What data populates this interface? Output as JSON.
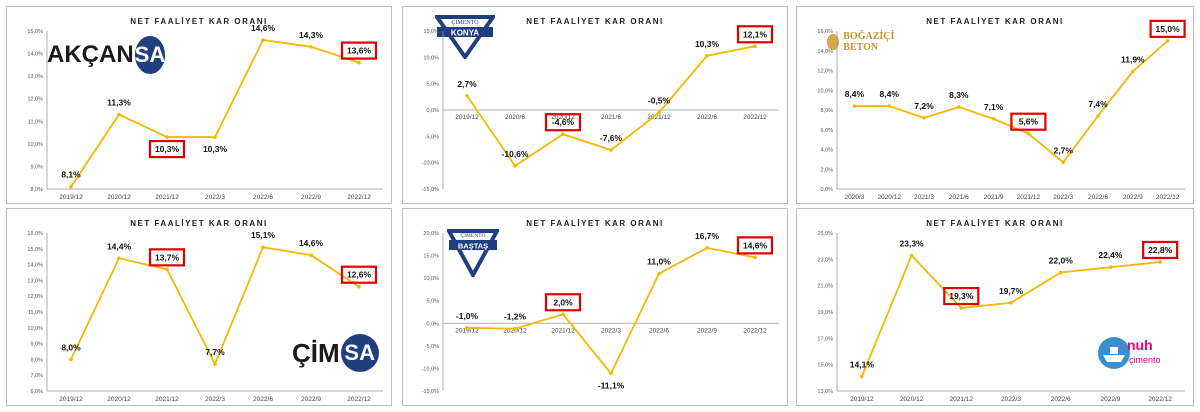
{
  "charts": [
    {
      "company": "AKÇANSA",
      "logo": {
        "text_a": "AKÇAN",
        "text_b": "SA"
      },
      "chart_data": {
        "type": "line",
        "title": "NET FAALİYET KAR ORANI",
        "categories": [
          "2019/12",
          "2020/12",
          "2021/12",
          "2022/3",
          "2022/6",
          "2022/9",
          "2022/12"
        ],
        "values": [
          8.1,
          11.3,
          10.3,
          10.3,
          14.6,
          14.3,
          13.6
        ],
        "data_labels": [
          "8,1%",
          "11,3%",
          "10,3%",
          "10,3%",
          "14,6%",
          "14,3%",
          "13,6%"
        ],
        "ylim": [
          8,
          15
        ],
        "yticks": [
          "8,0%",
          "9,0%",
          "10,0%",
          "11,0%",
          "12,0%",
          "13,0%",
          "14,0%",
          "15,0%"
        ],
        "highlight": [
          2,
          6
        ],
        "label_pos": [
          "above",
          "above",
          "below",
          "below",
          "above",
          "above",
          "above"
        ],
        "line_color": "#f5b800",
        "highlight_color": "#e00000"
      }
    },
    {
      "company": "KONYA ÇİMENTO",
      "logo": {
        "text_a": "ÇİMENTO",
        "text_b": "KONYA"
      },
      "chart_data": {
        "type": "line",
        "title": "NET FAALİYET KAR ORANI",
        "categories": [
          "2019/12",
          "2020/6",
          "2020/12",
          "2021/6",
          "2021/12",
          "2022/6",
          "2022/12"
        ],
        "values": [
          2.7,
          -10.6,
          -4.6,
          -7.6,
          -0.5,
          10.3,
          12.1
        ],
        "data_labels": [
          "2,7%",
          "-10,6%",
          "-4,6%",
          "-7,6%",
          "-0,5%",
          "10,3%",
          "12,1%"
        ],
        "ylim": [
          -15,
          15
        ],
        "yticks": [
          "-15,0%",
          "-10,0%",
          "-5,0%",
          "0,0%",
          "5,0%",
          "10,0%",
          "15,0%"
        ],
        "highlight": [
          2,
          6
        ],
        "label_pos": [
          "above",
          "above",
          "above",
          "above",
          "above",
          "above",
          "above"
        ],
        "xaxis_at_zero": true,
        "line_color": "#f5b800",
        "highlight_color": "#e00000"
      }
    },
    {
      "company": "BOĞAZİÇİ BETON",
      "logo": {
        "text_a": "BOĞAZİÇİ BETON"
      },
      "chart_data": {
        "type": "line",
        "title": "NET FAALİYET KAR ORANI",
        "categories": [
          "2020/3",
          "2020/12",
          "2021/3",
          "2021/6",
          "2021/9",
          "2021/12",
          "2022/3",
          "2022/6",
          "2022/9",
          "2022/12"
        ],
        "values": [
          8.4,
          8.4,
          7.2,
          8.3,
          7.1,
          5.6,
          2.7,
          7.4,
          11.9,
          15.0
        ],
        "data_labels": [
          "8,4%",
          "8,4%",
          "7,2%",
          "8,3%",
          "7,1%",
          "5,6%",
          "2,7%",
          "7,4%",
          "11,9%",
          "15,0%"
        ],
        "ylim": [
          0,
          16
        ],
        "yticks": [
          "0,0%",
          "2,0%",
          "4,0%",
          "6,0%",
          "8,0%",
          "10,0%",
          "12,0%",
          "14,0%",
          "16,0%"
        ],
        "highlight": [
          5,
          9
        ],
        "label_pos": [
          "above",
          "above",
          "above",
          "above",
          "above",
          "above",
          "above",
          "above",
          "above",
          "above"
        ],
        "line_color": "#f5b800",
        "highlight_color": "#e00000"
      }
    },
    {
      "company": "ÇİMSA",
      "logo": {
        "text_a": "ÇİM",
        "text_b": "SA"
      },
      "chart_data": {
        "type": "line",
        "title": "NET FAALİYET KAR ORANI",
        "categories": [
          "2019/12",
          "2020/12",
          "2021/12",
          "2022/3",
          "2022/6",
          "2022/9",
          "2022/12"
        ],
        "values": [
          8.0,
          14.4,
          13.7,
          7.7,
          15.1,
          14.6,
          12.6
        ],
        "data_labels": [
          "8,0%",
          "14,4%",
          "13,7%",
          "7,7%",
          "15,1%",
          "14,6%",
          "12,6%"
        ],
        "ylim": [
          6,
          16
        ],
        "yticks": [
          "6,0%",
          "7,0%",
          "8,0%",
          "9,0%",
          "10,0%",
          "11,0%",
          "12,0%",
          "13,0%",
          "14,0%",
          "15,0%",
          "16,0%"
        ],
        "highlight": [
          2,
          6
        ],
        "label_pos": [
          "above",
          "above",
          "above",
          "above",
          "above",
          "above",
          "above"
        ],
        "line_color": "#f5b800",
        "highlight_color": "#e00000"
      }
    },
    {
      "company": "BAŞTAŞ",
      "logo": {
        "text_a": "ÇİMENTO",
        "text_b": "BAŞTAŞ"
      },
      "chart_data": {
        "type": "line",
        "title": "NET FAALİYET KAR ORANI",
        "categories": [
          "2019/12",
          "2020/12",
          "2021/12",
          "2022/3",
          "2022/6",
          "2022/9",
          "2022/12"
        ],
        "values": [
          -1.0,
          -1.2,
          2.0,
          -11.1,
          11.0,
          16.7,
          14.6
        ],
        "data_labels": [
          "-1,0%",
          "-1,2%",
          "2,0%",
          "-11,1%",
          "11,0%",
          "16,7%",
          "14,6%"
        ],
        "ylim": [
          -15,
          20
        ],
        "yticks": [
          "-15,0%",
          "-10,0%",
          "-5,0%",
          "0,0%",
          "5,0%",
          "10,0%",
          "15,0%",
          "20,0%"
        ],
        "highlight": [
          2,
          6
        ],
        "label_pos": [
          "above",
          "above",
          "above",
          "below",
          "above",
          "above",
          "above"
        ],
        "xaxis_at_zero": true,
        "line_color": "#f5b800",
        "highlight_color": "#e00000"
      }
    },
    {
      "company": "NUH ÇİMENTO",
      "logo": {
        "text_a": "nuh",
        "text_b": "çimento"
      },
      "chart_data": {
        "type": "line",
        "title": "NET FAALİYET KAR ORANI",
        "categories": [
          "2019/12",
          "2020/12",
          "2021/12",
          "2022/3",
          "2022/6",
          "2022/9",
          "2022/12"
        ],
        "values": [
          14.1,
          23.3,
          19.3,
          19.7,
          22.0,
          22.4,
          22.8
        ],
        "data_labels": [
          "14,1%",
          "23,3%",
          "19,3%",
          "19,7%",
          "22,0%",
          "22,4%",
          "22,8%"
        ],
        "ylim": [
          13,
          25
        ],
        "yticks": [
          "13,0%",
          "15,0%",
          "17,0%",
          "19,0%",
          "21,0%",
          "23,0%",
          "25,0%"
        ],
        "highlight": [
          2,
          6
        ],
        "label_pos": [
          "above",
          "above",
          "above",
          "above",
          "above",
          "above",
          "above"
        ],
        "line_color": "#f5b800",
        "highlight_color": "#e00000"
      }
    }
  ]
}
